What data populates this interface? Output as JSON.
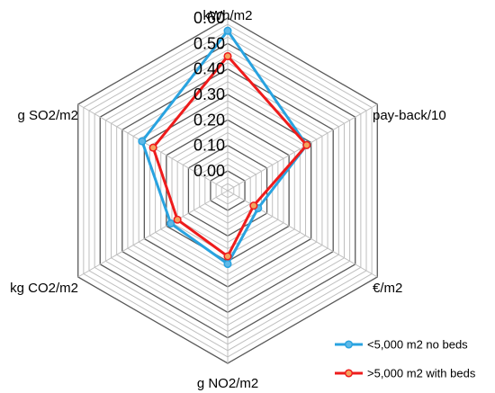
{
  "chart_data": {
    "type": "radar",
    "title": "",
    "axes": [
      "kWh/m2",
      "pay-back/10",
      "€/m2",
      "g NO2/m2",
      "kg CO2/m2",
      "g SO2/m2"
    ],
    "r_ticks": [
      "0.00",
      "0.10",
      "0.20",
      "0.30",
      "0.40",
      "0.50",
      "0.60"
    ],
    "r_range": [
      0,
      0.6
    ],
    "minor_gridlines": true,
    "grid_major_color": "#595959",
    "grid_minor_color": "#bfbfbf",
    "legend_position": "bottom-right",
    "series": [
      {
        "name": "<5,000 m2 no beds",
        "color": "#29a3e0",
        "marker_fill": "#5fb9e8",
        "values": [
          0.55,
          0.28,
          0.06,
          0.21,
          0.18,
          0.31
        ]
      },
      {
        "name": ">5,000 m2 with beds",
        "color": "#ee1c1c",
        "marker_fill": "#f4a460",
        "values": [
          0.45,
          0.28,
          0.04,
          0.18,
          0.15,
          0.26
        ]
      }
    ]
  }
}
